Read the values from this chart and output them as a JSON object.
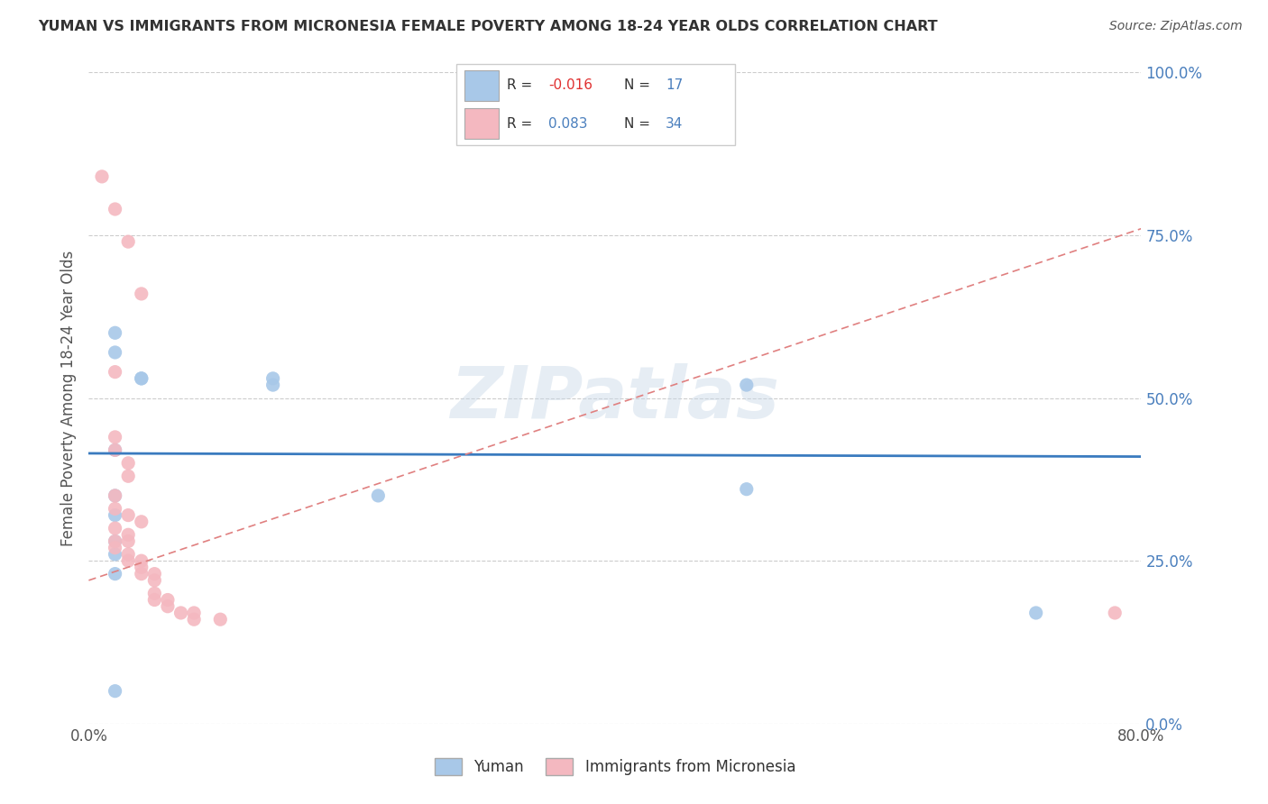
{
  "title": "YUMAN VS IMMIGRANTS FROM MICRONESIA FEMALE POVERTY AMONG 18-24 YEAR OLDS CORRELATION CHART",
  "source": "Source: ZipAtlas.com",
  "ylabel": "Female Poverty Among 18-24 Year Olds",
  "xlim": [
    0.0,
    0.8
  ],
  "ylim": [
    0.0,
    1.0
  ],
  "xtick_labels": [
    "0.0%",
    "80.0%"
  ],
  "ytick_labels": [
    "0.0%",
    "25.0%",
    "50.0%",
    "75.0%",
    "100.0%"
  ],
  "ytick_vals": [
    0.0,
    0.25,
    0.5,
    0.75,
    1.0
  ],
  "xtick_vals": [
    0.0,
    0.8
  ],
  "legend_labels": [
    "Yuman",
    "Immigrants from Micronesia"
  ],
  "blue_color": "#a8c8e8",
  "pink_color": "#f4b8c0",
  "blue_scatter": [
    [
      0.02,
      0.42
    ],
    [
      0.02,
      0.6
    ],
    [
      0.02,
      0.57
    ],
    [
      0.04,
      0.53
    ],
    [
      0.04,
      0.53
    ],
    [
      0.02,
      0.35
    ],
    [
      0.02,
      0.32
    ],
    [
      0.02,
      0.28
    ],
    [
      0.02,
      0.26
    ],
    [
      0.02,
      0.23
    ],
    [
      0.02,
      0.05
    ],
    [
      0.14,
      0.53
    ],
    [
      0.14,
      0.52
    ],
    [
      0.22,
      0.35
    ],
    [
      0.5,
      0.36
    ],
    [
      0.5,
      0.52
    ],
    [
      0.72,
      0.17
    ]
  ],
  "pink_scatter": [
    [
      0.01,
      0.84
    ],
    [
      0.02,
      0.79
    ],
    [
      0.03,
      0.74
    ],
    [
      0.04,
      0.66
    ],
    [
      0.02,
      0.54
    ],
    [
      0.02,
      0.44
    ],
    [
      0.02,
      0.42
    ],
    [
      0.03,
      0.4
    ],
    [
      0.03,
      0.38
    ],
    [
      0.02,
      0.35
    ],
    [
      0.02,
      0.33
    ],
    [
      0.03,
      0.32
    ],
    [
      0.04,
      0.31
    ],
    [
      0.02,
      0.3
    ],
    [
      0.03,
      0.29
    ],
    [
      0.03,
      0.28
    ],
    [
      0.02,
      0.28
    ],
    [
      0.02,
      0.27
    ],
    [
      0.03,
      0.26
    ],
    [
      0.03,
      0.25
    ],
    [
      0.04,
      0.25
    ],
    [
      0.04,
      0.24
    ],
    [
      0.04,
      0.23
    ],
    [
      0.05,
      0.23
    ],
    [
      0.05,
      0.22
    ],
    [
      0.05,
      0.2
    ],
    [
      0.05,
      0.19
    ],
    [
      0.06,
      0.19
    ],
    [
      0.06,
      0.18
    ],
    [
      0.07,
      0.17
    ],
    [
      0.08,
      0.17
    ],
    [
      0.08,
      0.16
    ],
    [
      0.1,
      0.16
    ],
    [
      0.78,
      0.17
    ]
  ],
  "blue_line": {
    "x0": 0.0,
    "x1": 0.8,
    "y0": 0.415,
    "y1": 0.41
  },
  "pink_line": {
    "x0": 0.0,
    "x1": 0.8,
    "y0": 0.22,
    "y1": 0.76
  },
  "watermark": "ZIPatlas",
  "background_color": "#ffffff",
  "grid_color": "#cccccc",
  "title_color": "#333333",
  "source_color": "#555555",
  "ylabel_color": "#555555",
  "ytick_color": "#4a7fbd",
  "xtick_color": "#555555"
}
